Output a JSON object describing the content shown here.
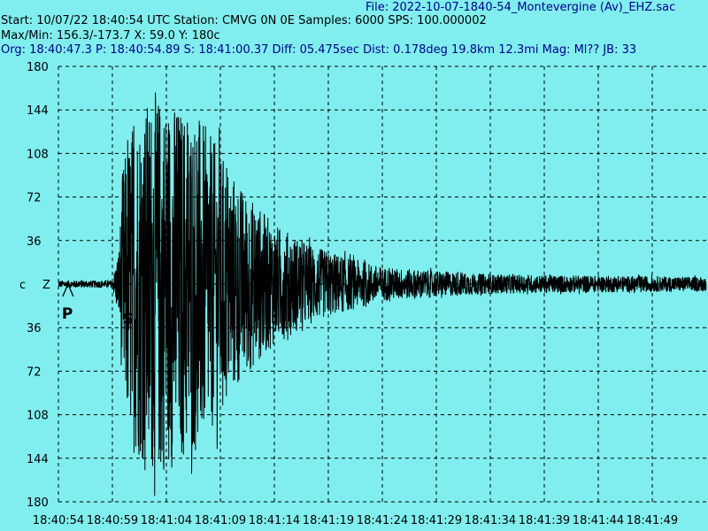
{
  "header": {
    "file_line": "File: 2022-10-07-1840-54_Montevergine (Av)_EHZ.sac",
    "start_line": "Start: 10/07/22 18:40:54 UTC Station: CMVG 0N 0E Samples: 6000  SPS: 100.000002",
    "maxmin_line": "Max/Min: 156.3/-173.7 X: 59.0 Y: 180c",
    "org_line": "Org: 18:40:47.3 P: 18:40:54.89 S: 18:41:00.37 Diff: 05.475sec Dist: 0.178deg 19.8km 12.3mi  Mag: Ml?? JB: 33"
  },
  "axis_labels": {
    "left_c": "c",
    "left_z": "Z"
  },
  "colors": {
    "background": "#80eeee",
    "trace": "#000000",
    "grid": "#000000",
    "header": "#00008b"
  },
  "chart_data": {
    "type": "line",
    "x_ticks": [
      "18:40:54",
      "18:40:59",
      "18:41:04",
      "18:41:09",
      "18:41:14",
      "18:41:19",
      "18:41:24",
      "18:41:29",
      "18:41:34",
      "18:41:39",
      "18:41:44",
      "18:41:49"
    ],
    "y_ticks": [
      "180",
      "144",
      "108",
      "72",
      "36",
      "0",
      "36",
      "72",
      "108",
      "144",
      "180"
    ],
    "ylim": [
      -180,
      180
    ],
    "xlim_seconds": [
      0,
      60
    ],
    "grid": true,
    "phases": [
      {
        "label": "P",
        "time_s": 0.89
      },
      {
        "label": "S",
        "time_s": 6.37
      }
    ],
    "envelope": [
      {
        "t": 0.0,
        "a": 3
      },
      {
        "t": 5.0,
        "a": 3
      },
      {
        "t": 5.6,
        "a": 30
      },
      {
        "t": 6.0,
        "a": 100
      },
      {
        "t": 7.0,
        "a": 140
      },
      {
        "t": 9.0,
        "a": 160
      },
      {
        "t": 13.0,
        "a": 140
      },
      {
        "t": 15.0,
        "a": 110
      },
      {
        "t": 17.0,
        "a": 80
      },
      {
        "t": 20.0,
        "a": 50
      },
      {
        "t": 24.0,
        "a": 30
      },
      {
        "t": 30.0,
        "a": 14
      },
      {
        "t": 40.0,
        "a": 8
      },
      {
        "t": 60.0,
        "a": 6
      }
    ],
    "series": [
      {
        "values": []
      }
    ]
  }
}
